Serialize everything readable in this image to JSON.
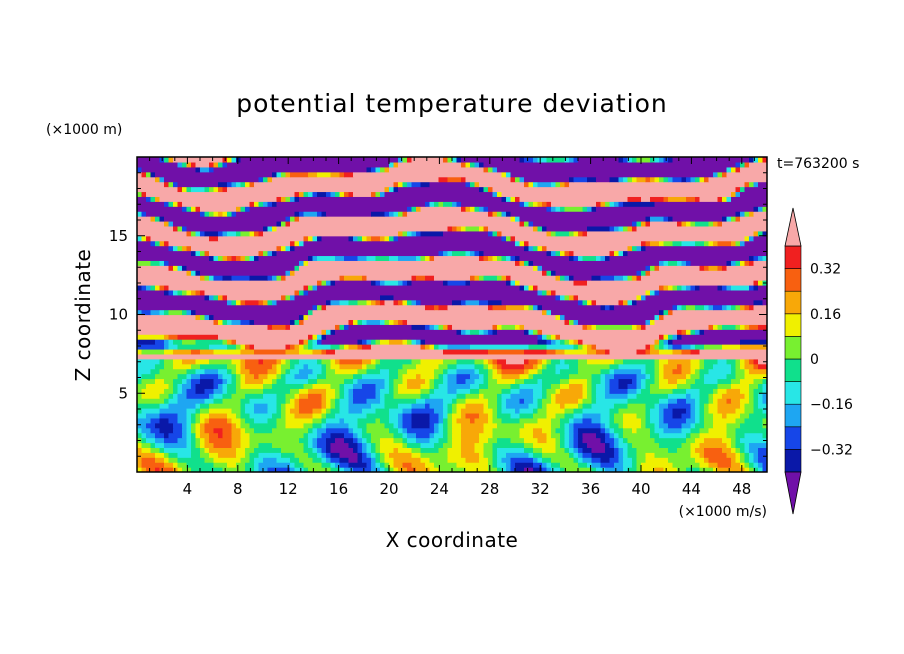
{
  "chart_data": {
    "type": "heatmap",
    "title": "potential temperature deviation",
    "xlabel": "X coordinate",
    "ylabel": "Z coordinate",
    "x_unit": "(×1000 m/s)",
    "y_unit": "(×1000 m)",
    "time_label": "t=763200 s",
    "xlim": [
      0,
      50
    ],
    "ylim": [
      0,
      20
    ],
    "x_ticks": [
      "4",
      "8",
      "12",
      "16",
      "20",
      "24",
      "28",
      "32",
      "36",
      "40",
      "44",
      "48"
    ],
    "x_tick_values": [
      4,
      8,
      12,
      16,
      20,
      24,
      28,
      32,
      36,
      40,
      44,
      48
    ],
    "y_ticks": [
      "5",
      "10",
      "15"
    ],
    "y_tick_values": [
      5,
      10,
      15
    ],
    "colorbar": {
      "levels": [
        -0.4,
        -0.32,
        -0.24,
        -0.16,
        -0.08,
        0,
        0.08,
        0.16,
        0.24,
        0.32,
        0.4
      ],
      "tick_labels": [
        "0.32",
        "0.16",
        "0",
        "−0.16",
        "−0.32"
      ],
      "tick_values": [
        0.32,
        0.16,
        0,
        -0.16,
        -0.32
      ],
      "colors": [
        "#0a18a8",
        "#1646e8",
        "#1ea6f2",
        "#28e6e6",
        "#10e08c",
        "#78f030",
        "#f0f000",
        "#f8a808",
        "#f86010",
        "#f02020"
      ],
      "under_color": "#7010a8",
      "over_color": "#f8a8a8",
      "extend": "both"
    }
  }
}
